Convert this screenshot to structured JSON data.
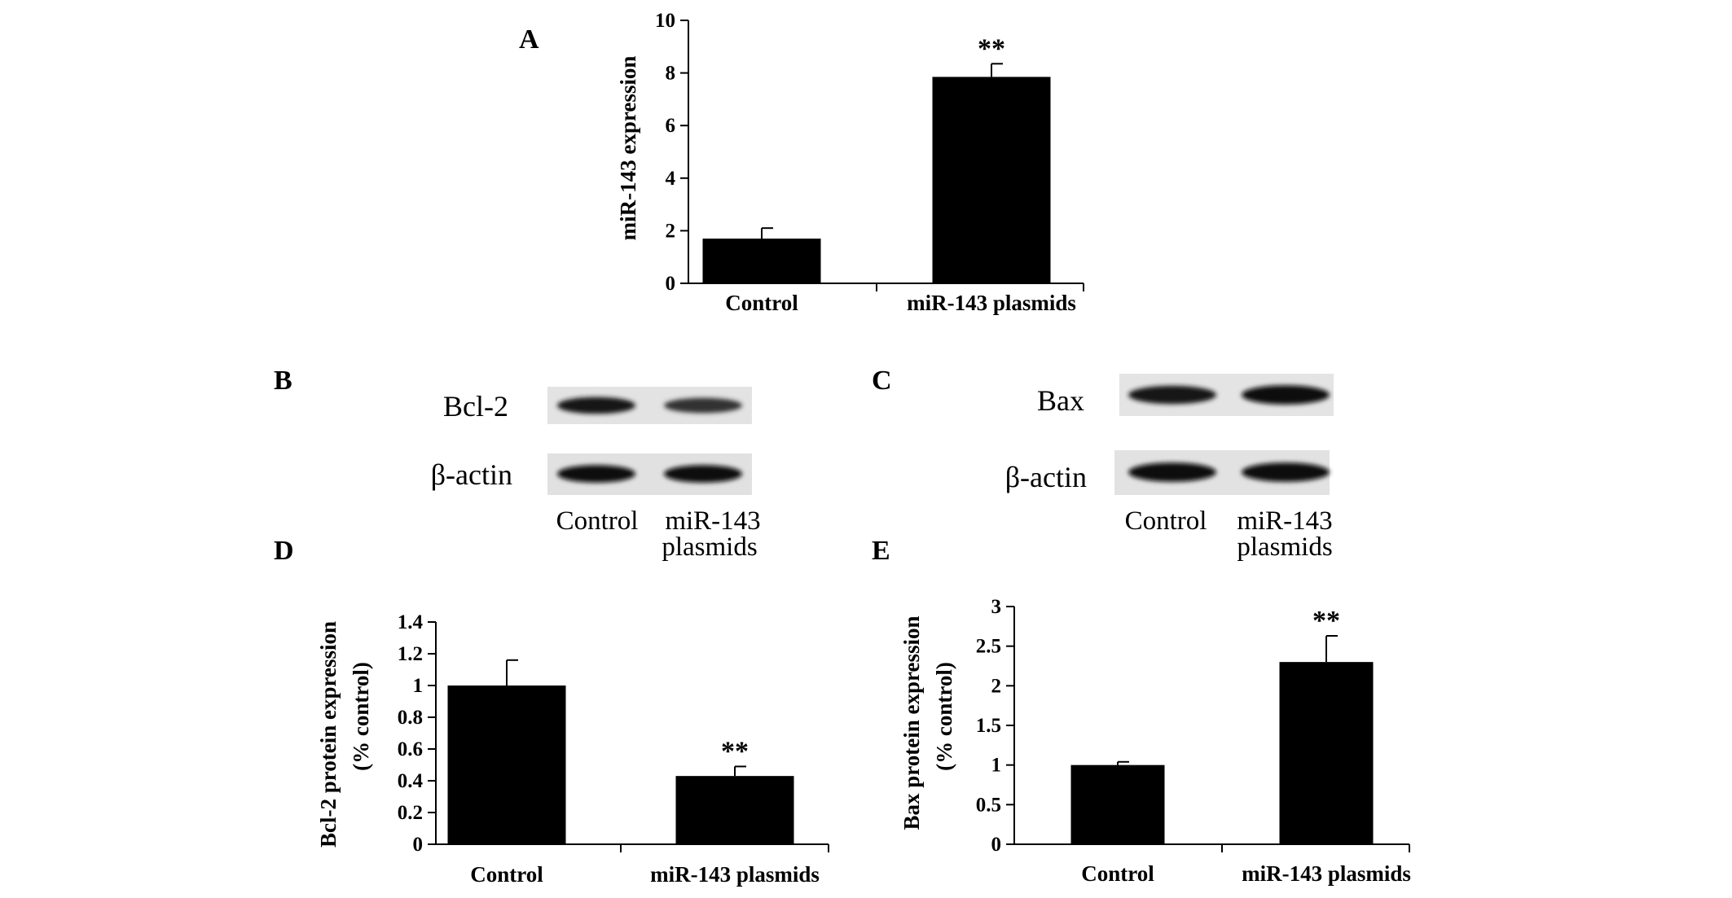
{
  "figure": {
    "panel_labels": [
      "A",
      "B",
      "C",
      "D",
      "E"
    ]
  },
  "chart_data": [
    {
      "panel": "A",
      "type": "bar",
      "categories": [
        "Control",
        "miR-143 plasmids"
      ],
      "values": [
        1.7,
        7.85
      ],
      "errors": [
        0.4,
        0.5
      ],
      "significance": [
        "",
        "**"
      ],
      "ylabel": "miR-143 expression",
      "ylim": [
        0,
        10
      ],
      "yticks": [
        "0",
        "2",
        "4",
        "6",
        "8",
        "10"
      ],
      "bar_color": "#000000"
    },
    {
      "panel": "D",
      "type": "bar",
      "categories": [
        "Control",
        "miR-143 plasmids"
      ],
      "values": [
        1.0,
        0.43
      ],
      "errors": [
        0.16,
        0.06
      ],
      "significance": [
        "",
        "**"
      ],
      "ylabel": [
        "Bcl-2 protein expression",
        "(% control)"
      ],
      "ylim": [
        0,
        1.4
      ],
      "yticks": [
        "0",
        "0.2",
        "0.4",
        "0.6",
        "0.8",
        "1",
        "1.2",
        "1.4"
      ],
      "bar_color": "#000000"
    },
    {
      "panel": "E",
      "type": "bar",
      "categories": [
        "Control",
        "miR-143 plasmids"
      ],
      "values": [
        1.0,
        2.3
      ],
      "errors": [
        0.04,
        0.33
      ],
      "significance": [
        "",
        "**"
      ],
      "ylabel": [
        "Bax protein expression",
        "(% control)"
      ],
      "ylim": [
        0,
        3
      ],
      "yticks": [
        "0",
        "0.5",
        "1",
        "1.5",
        "2",
        "2.5",
        "3"
      ],
      "bar_color": "#000000"
    }
  ],
  "blots": [
    {
      "panel": "B",
      "rows": [
        {
          "label": "Bcl-2",
          "intensities": [
            0.85,
            0.65
          ]
        },
        {
          "label": "β-actin",
          "intensities": [
            0.95,
            0.95
          ]
        }
      ],
      "lanes": [
        [
          "Control"
        ],
        [
          "miR-143",
          "plasmids"
        ]
      ]
    },
    {
      "panel": "C",
      "rows": [
        {
          "label": "Bax",
          "intensities": [
            0.85,
            0.95
          ]
        },
        {
          "label": "β-actin",
          "intensities": [
            0.95,
            0.95
          ]
        }
      ],
      "lanes": [
        [
          "Control"
        ],
        [
          "miR-143",
          "plasmids"
        ]
      ]
    }
  ]
}
